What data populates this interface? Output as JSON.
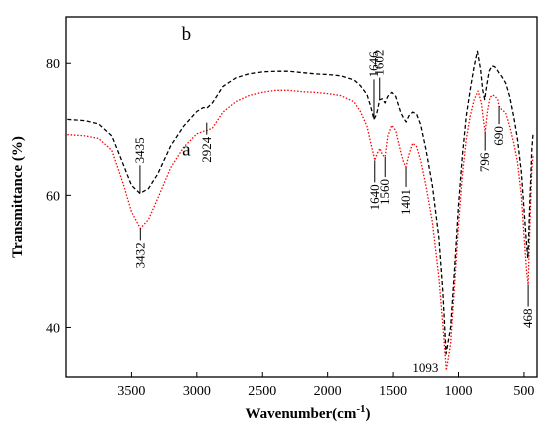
{
  "chart_data": {
    "type": "line",
    "xlabel": "Wavenumber(cm",
    "xlabel_sup": "-1",
    "xlabel_close": ")",
    "ylabel": "Transmittance (%)",
    "xlim": [
      4000,
      400
    ],
    "x_reversed": true,
    "ylim": [
      32.5,
      87
    ],
    "x_ticks": [
      3500,
      3000,
      2500,
      2000,
      1500,
      1000,
      500
    ],
    "y_ticks": [
      40,
      60,
      80
    ],
    "grid": false,
    "series": [
      {
        "name": "a",
        "color": "#ff0000",
        "style": "dotted",
        "points": [
          [
            3990,
            69.2
          ],
          [
            3850,
            69.0
          ],
          [
            3750,
            68.6
          ],
          [
            3650,
            66.8
          ],
          [
            3560,
            61.5
          ],
          [
            3500,
            57.5
          ],
          [
            3432,
            55.0
          ],
          [
            3370,
            56.3
          ],
          [
            3300,
            59.5
          ],
          [
            3200,
            64.2
          ],
          [
            3100,
            67.3
          ],
          [
            3000,
            69.3
          ],
          [
            2950,
            69.7
          ],
          [
            2924,
            69.8
          ],
          [
            2880,
            70.2
          ],
          [
            2800,
            72.6
          ],
          [
            2700,
            74.2
          ],
          [
            2600,
            75.1
          ],
          [
            2500,
            75.6
          ],
          [
            2400,
            75.9
          ],
          [
            2300,
            75.9
          ],
          [
            2200,
            75.7
          ],
          [
            2100,
            75.6
          ],
          [
            2000,
            75.4
          ],
          [
            1900,
            75.1
          ],
          [
            1800,
            74.2
          ],
          [
            1750,
            72.7
          ],
          [
            1700,
            70.5
          ],
          [
            1660,
            67.0
          ],
          [
            1640,
            65.3
          ],
          [
            1620,
            66.4
          ],
          [
            1600,
            67.1
          ],
          [
            1580,
            66.1
          ],
          [
            1560,
            65.8
          ],
          [
            1540,
            69.0
          ],
          [
            1510,
            70.6
          ],
          [
            1480,
            69.8
          ],
          [
            1440,
            66.5
          ],
          [
            1420,
            65.0
          ],
          [
            1401,
            64.3
          ],
          [
            1380,
            66.1
          ],
          [
            1350,
            67.9
          ],
          [
            1320,
            67.4
          ],
          [
            1290,
            65.3
          ],
          [
            1250,
            61.5
          ],
          [
            1200,
            56.0
          ],
          [
            1150,
            47.5
          ],
          [
            1120,
            40.5
          ],
          [
            1093,
            33.5
          ],
          [
            1060,
            37.5
          ],
          [
            1030,
            46.5
          ],
          [
            1000,
            55.5
          ],
          [
            970,
            63.0
          ],
          [
            940,
            68.5
          ],
          [
            910,
            72.0
          ],
          [
            880,
            74.5
          ],
          [
            850,
            75.8
          ],
          [
            825,
            74.0
          ],
          [
            810,
            71.5
          ],
          [
            796,
            69.5
          ],
          [
            780,
            72.5
          ],
          [
            760,
            74.8
          ],
          [
            740,
            75.2
          ],
          [
            720,
            75.0
          ],
          [
            700,
            74.5
          ],
          [
            690,
            73.5
          ],
          [
            670,
            73.0
          ],
          [
            640,
            72.5
          ],
          [
            610,
            70.5
          ],
          [
            580,
            68.0
          ],
          [
            550,
            65.0
          ],
          [
            520,
            60.0
          ],
          [
            500,
            54.0
          ],
          [
            480,
            48.5
          ],
          [
            468,
            46.5
          ],
          [
            455,
            55.0
          ],
          [
            440,
            64.0
          ],
          [
            430,
            66.0
          ]
        ]
      },
      {
        "name": "b",
        "color": "#000000",
        "style": "dashed",
        "points": [
          [
            3990,
            71.5
          ],
          [
            3850,
            71.3
          ],
          [
            3750,
            70.8
          ],
          [
            3650,
            69.0
          ],
          [
            3560,
            64.5
          ],
          [
            3500,
            61.5
          ],
          [
            3435,
            60.3
          ],
          [
            3370,
            61.0
          ],
          [
            3300,
            63.2
          ],
          [
            3200,
            67.5
          ],
          [
            3100,
            70.5
          ],
          [
            3000,
            72.7
          ],
          [
            2950,
            73.3
          ],
          [
            2924,
            73.2
          ],
          [
            2880,
            74.0
          ],
          [
            2800,
            76.5
          ],
          [
            2700,
            77.8
          ],
          [
            2600,
            78.4
          ],
          [
            2500,
            78.7
          ],
          [
            2400,
            78.8
          ],
          [
            2300,
            78.8
          ],
          [
            2200,
            78.6
          ],
          [
            2100,
            78.4
          ],
          [
            2000,
            78.3
          ],
          [
            1900,
            78.1
          ],
          [
            1800,
            77.5
          ],
          [
            1750,
            76.6
          ],
          [
            1700,
            75.3
          ],
          [
            1670,
            73.4
          ],
          [
            1646,
            71.5
          ],
          [
            1625,
            72.3
          ],
          [
            1602,
            74.5
          ],
          [
            1580,
            74.6
          ],
          [
            1560,
            74.0
          ],
          [
            1540,
            75.0
          ],
          [
            1510,
            75.6
          ],
          [
            1480,
            75.0
          ],
          [
            1440,
            72.5
          ],
          [
            1420,
            71.7
          ],
          [
            1400,
            71.1
          ],
          [
            1380,
            72.0
          ],
          [
            1350,
            72.6
          ],
          [
            1320,
            72.3
          ],
          [
            1290,
            70.7
          ],
          [
            1250,
            67.0
          ],
          [
            1200,
            61.5
          ],
          [
            1150,
            53.5
          ],
          [
            1120,
            45.5
          ],
          [
            1095,
            36.0
          ],
          [
            1060,
            40.0
          ],
          [
            1030,
            49.0
          ],
          [
            1000,
            58.5
          ],
          [
            970,
            66.0
          ],
          [
            940,
            72.0
          ],
          [
            910,
            76.0
          ],
          [
            880,
            79.5
          ],
          [
            855,
            81.8
          ],
          [
            830,
            79.0
          ],
          [
            815,
            76.0
          ],
          [
            800,
            74.5
          ],
          [
            785,
            76.5
          ],
          [
            765,
            78.8
          ],
          [
            745,
            79.6
          ],
          [
            725,
            79.5
          ],
          [
            705,
            79.0
          ],
          [
            690,
            78.5
          ],
          [
            670,
            78.0
          ],
          [
            640,
            77.0
          ],
          [
            610,
            75.0
          ],
          [
            580,
            72.0
          ],
          [
            550,
            68.5
          ],
          [
            520,
            63.5
          ],
          [
            500,
            58.0
          ],
          [
            480,
            52.5
          ],
          [
            470,
            50.5
          ],
          [
            455,
            59.0
          ],
          [
            440,
            67.0
          ],
          [
            430,
            69.5
          ]
        ]
      }
    ],
    "annotations": [
      {
        "text": "3435",
        "x": 3435,
        "y": 60.3,
        "dir": "up",
        "len": 28,
        "rot": -90
      },
      {
        "text": "2924",
        "x": 2924,
        "y": 71.0,
        "dir": "down",
        "len": 12,
        "rot": -90
      },
      {
        "text": "1646",
        "x": 1646,
        "y": 71.5,
        "dir": "up",
        "len": 40,
        "rot": -90
      },
      {
        "text": "1602",
        "x": 1602,
        "y": 74.5,
        "dir": "up",
        "len": 22,
        "rot": -90
      },
      {
        "text": "1640",
        "x": 1640,
        "y": 65.3,
        "dir": "down",
        "len": 22,
        "rot": -90
      },
      {
        "text": "1560",
        "x": 1560,
        "y": 65.8,
        "dir": "down",
        "len": 20,
        "rot": -90
      },
      {
        "text": "1401",
        "x": 1401,
        "y": 64.3,
        "dir": "down",
        "len": 20,
        "rot": -90
      },
      {
        "text": "796",
        "x": 796,
        "y": 69.5,
        "dir": "down",
        "len": 18,
        "rot": -90
      },
      {
        "text": "690",
        "x": 690,
        "y": 73.5,
        "dir": "down",
        "len": 18,
        "rot": -90
      },
      {
        "text": "3432",
        "x": 3432,
        "y": 55.0,
        "dir": "down",
        "len": 12,
        "rot": -90
      },
      {
        "text": "468",
        "x": 468,
        "y": 46.5,
        "dir": "down",
        "len": 22,
        "rot": -90
      },
      {
        "text": "1093",
        "x": 1093,
        "y": 34.0,
        "dir": "left",
        "len": 20,
        "rot": 0
      }
    ],
    "curve_labels": [
      {
        "text": "b",
        "x": 3080,
        "y": 83.5
      },
      {
        "text": "a",
        "x": 3080,
        "y": 66.0
      }
    ]
  }
}
